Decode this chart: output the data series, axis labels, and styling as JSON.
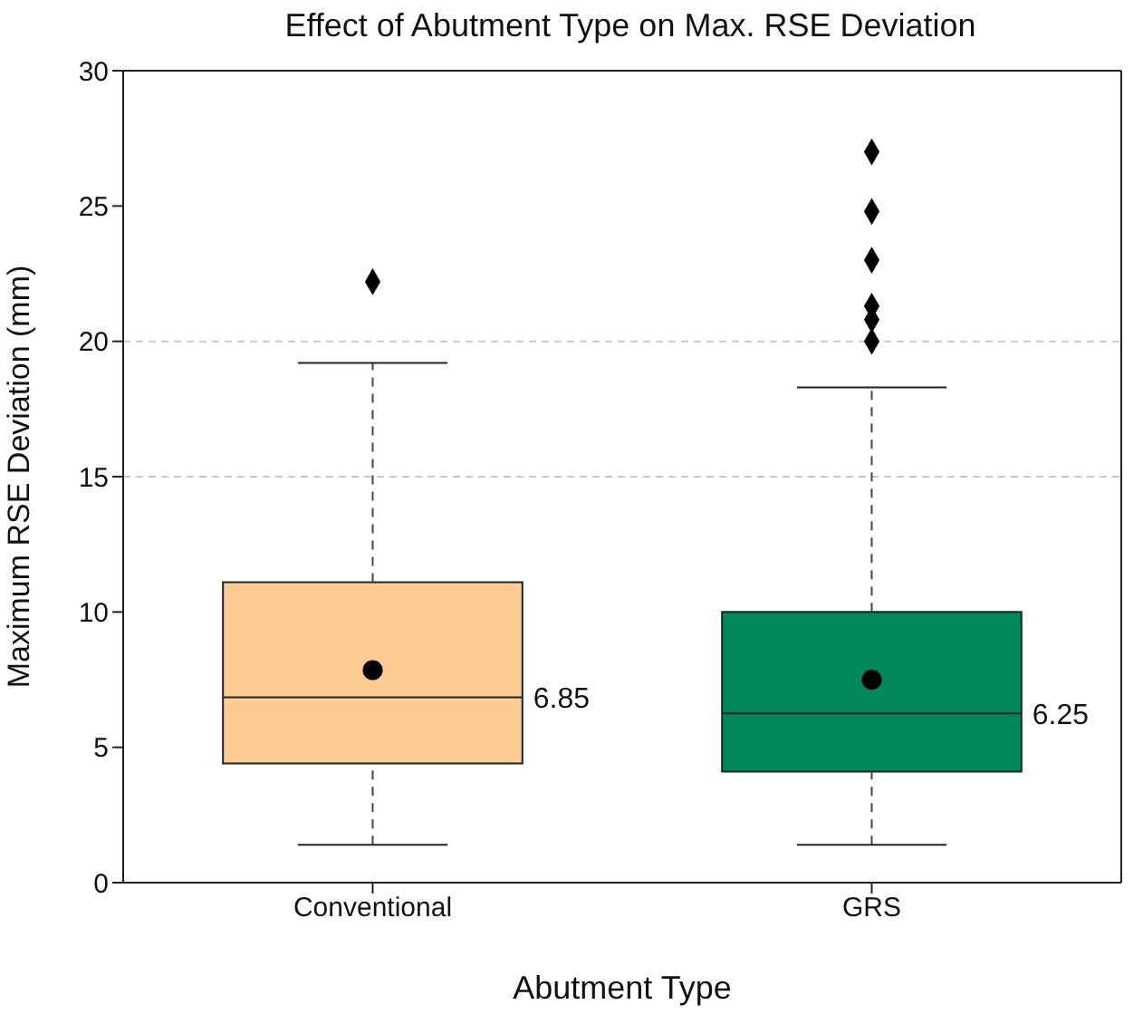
{
  "chart_data": {
    "type": "box",
    "title": "Effect of Abutment Type on Max. RSE Deviation",
    "xlabel": "Abutment Type",
    "ylabel": "Maximum RSE Deviation (mm)",
    "categories": [
      "Conventional",
      "GRS"
    ],
    "colors": [
      "#fdcc94",
      "#00875a"
    ],
    "boxes": [
      {
        "low": 1.4,
        "q1": 4.4,
        "median": 6.85,
        "q3": 11.1,
        "high": 19.2,
        "mean": 7.85,
        "outliers": [
          22.2
        ]
      },
      {
        "low": 1.4,
        "q1": 4.1,
        "median": 6.25,
        "q3": 10.0,
        "high": 18.3,
        "mean": 7.5,
        "outliers": [
          27.0,
          24.8,
          23.0,
          21.3,
          20.8,
          20.0
        ]
      }
    ],
    "annotations": [
      "6.85",
      "6.25"
    ],
    "ref_lines": [
      {
        "axis": "y",
        "value": 15,
        "color": "#c8c8c8",
        "line_style": "dashed"
      },
      {
        "axis": "y",
        "value": 20,
        "color": "#c8c8c8",
        "line_style": "dashed"
      }
    ],
    "ylim": [
      0,
      30
    ],
    "yticks": [
      0,
      5,
      10,
      15,
      20,
      25,
      30
    ],
    "marker": "diamond"
  }
}
